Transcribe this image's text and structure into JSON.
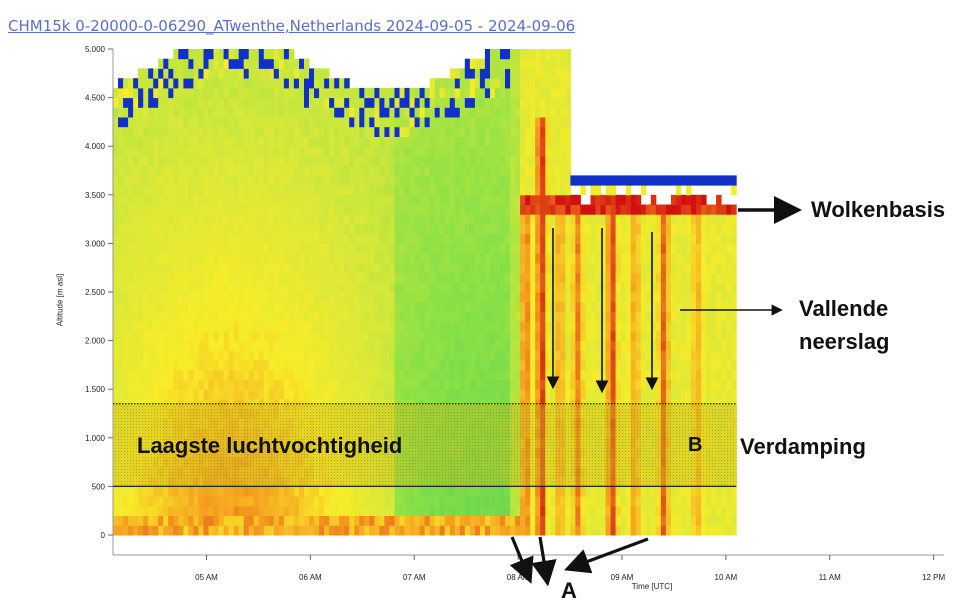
{
  "header": {
    "title": "CHM15k 0-20000-0-06290_ATwenthe,Netherlands 2024-09-05 - 2024-09-06"
  },
  "chart_data": {
    "type": "heatmap",
    "title": "CHM15k 0-20000-0-06290_ATwenthe,Netherlands 2024-09-05 - 2024-09-06",
    "xlabel": "Time [UTC]",
    "ylabel": "Altitude [m asl]",
    "ylim": [
      0,
      5000
    ],
    "xlim": [
      4.1,
      12.1
    ],
    "x_ticks": [
      {
        "value": 5,
        "label": "05 AM"
      },
      {
        "value": 6,
        "label": "06 AM"
      },
      {
        "value": 7,
        "label": "07 AM"
      },
      {
        "value": 8,
        "label": "08 AM"
      },
      {
        "value": 9,
        "label": "09 AM"
      },
      {
        "value": 10,
        "label": "10 AM"
      },
      {
        "value": 11,
        "label": "11 AM"
      },
      {
        "value": 12,
        "label": "12 PM"
      }
    ],
    "y_ticks": [
      {
        "value": 0,
        "label": "0"
      },
      {
        "value": 500,
        "label": "500"
      },
      {
        "value": 1000,
        "label": "1.000"
      },
      {
        "value": 1500,
        "label": "1.500"
      },
      {
        "value": 2000,
        "label": "2.000"
      },
      {
        "value": 2500,
        "label": "2.500"
      },
      {
        "value": 3000,
        "label": "3.000"
      },
      {
        "value": 3500,
        "label": "3.500"
      },
      {
        "value": 4000,
        "label": "4.000"
      },
      {
        "value": 4500,
        "label": "4.500"
      },
      {
        "value": 5000,
        "label": "5.000"
      }
    ],
    "data_end_time": 10.1,
    "cloud_base_altitude": 3350,
    "rain_onset_time": 8.0,
    "colors": {
      "noise": "#1030c8",
      "low": "#3ed86a",
      "mid": "#d8e83a",
      "high": "#f5a020",
      "strong": "#d81010",
      "highlight_band": "#c8b418"
    },
    "precip_streaks": [
      {
        "x": 8.05,
        "top": 3500,
        "intensity": 0.7
      },
      {
        "x": 8.2,
        "top": 4300,
        "intensity": 1.0
      },
      {
        "x": 8.38,
        "top": 3400,
        "intensity": 0.5
      },
      {
        "x": 8.55,
        "top": 3300,
        "intensity": 0.6
      },
      {
        "x": 8.88,
        "top": 3400,
        "intensity": 0.9
      },
      {
        "x": 9.1,
        "top": 3300,
        "intensity": 0.5
      },
      {
        "x": 9.38,
        "top": 3300,
        "intensity": 0.75
      },
      {
        "x": 9.7,
        "top": 3300,
        "intensity": 0.4
      }
    ],
    "bands": [
      {
        "name": "lowest-humidity-band",
        "y_from": 500,
        "y_to": 1350,
        "label": "Laagste luchtvochtigheid"
      }
    ],
    "annotations": [
      {
        "id": "cloud-base",
        "label": "Wolkenbasis"
      },
      {
        "id": "falling-precip-1",
        "label": "Vallende"
      },
      {
        "id": "falling-precip-2",
        "label": "neerslag"
      },
      {
        "id": "evaporation",
        "label": "Verdamping"
      },
      {
        "id": "marker-a",
        "label": "A"
      },
      {
        "id": "marker-b",
        "label": "B"
      }
    ]
  }
}
